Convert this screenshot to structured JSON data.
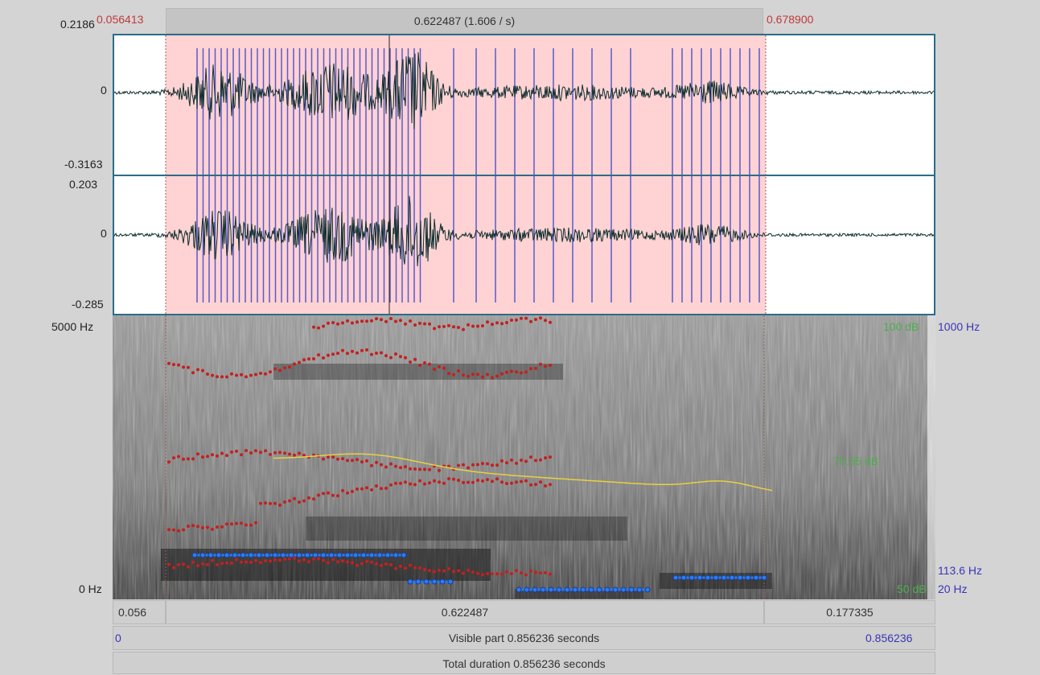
{
  "top_bar": {
    "left_time": "0.056413",
    "selection_label": "0.622487 (1.606 / s)",
    "right_time": "0.678900"
  },
  "channel1": {
    "max": "0.2186",
    "zero": "0",
    "min": "-0.3163"
  },
  "channel2": {
    "max": "0.203",
    "zero": "0",
    "min": "-0.285"
  },
  "spectrogram": {
    "freq_max": "5000 Hz",
    "freq_min": "0 Hz",
    "pitch_max": "1000 Hz",
    "pitch_value": "113.6 Hz",
    "pitch_min": "20 Hz",
    "intensity_top": "100 dB",
    "intensity_mid": "70.55 dB",
    "intensity_bottom": "50 dB"
  },
  "time_bar": {
    "left": "0.056",
    "middle": "0.622487",
    "right": "0.177335"
  },
  "visible_bar": {
    "start": "0",
    "label": "Visible part 0.856236 seconds",
    "end": "0.856236"
  },
  "total_bar": {
    "label": "Total duration 0.856236 seconds"
  },
  "colors": {
    "selection": "#ffd3d3",
    "pulse": "#5a5ad0",
    "waveform": "#0f2f2f",
    "formant": "#c42020",
    "pitch": "#2a7cf0",
    "intensity": "#e8d040",
    "panel_border": "#2a6d8a"
  }
}
